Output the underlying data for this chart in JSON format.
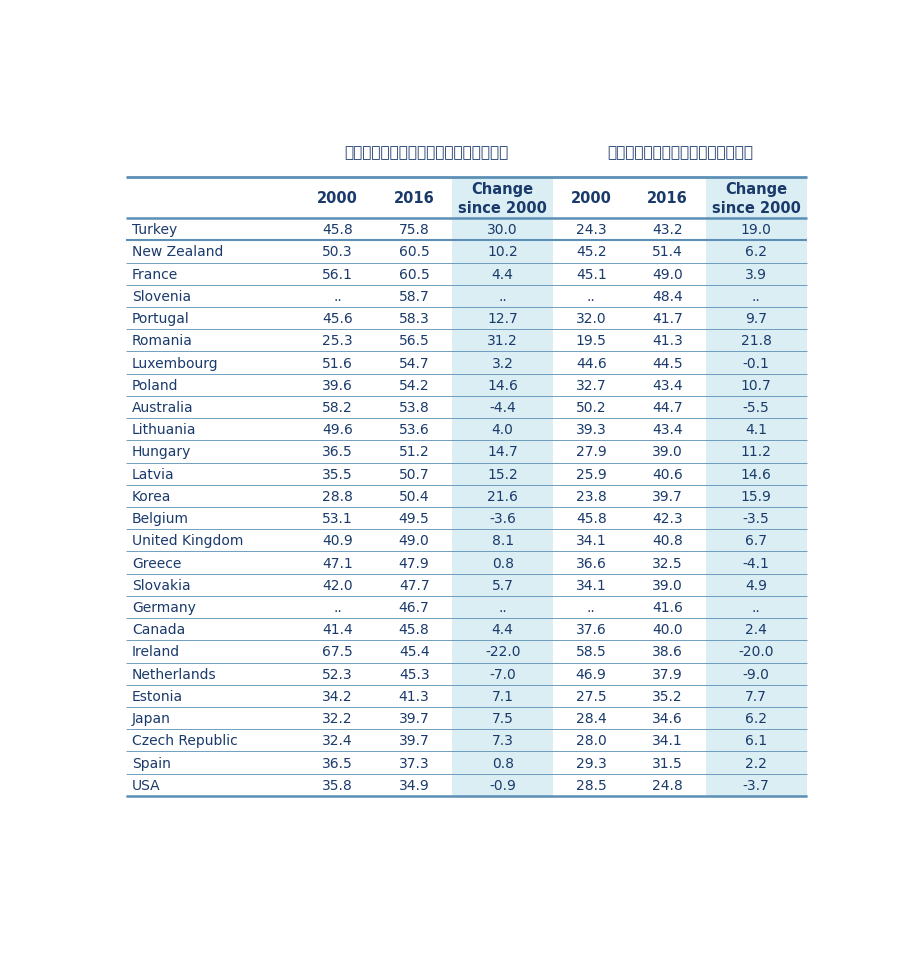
{
  "title1": "最低工資佔全職工作者薪資中位數百分比",
  "title2": "最低工資佔全職工人平均薪資百分比",
  "rows": [
    [
      "Turkey",
      "45.8",
      "75.8",
      "30.0",
      "24.3",
      "43.2",
      "19.0"
    ],
    [
      "New Zealand",
      "50.3",
      "60.5",
      "10.2",
      "45.2",
      "51.4",
      "6.2"
    ],
    [
      "France",
      "56.1",
      "60.5",
      "4.4",
      "45.1",
      "49.0",
      "3.9"
    ],
    [
      "Slovenia",
      "..",
      "58.7",
      "..",
      "..",
      "48.4",
      ".."
    ],
    [
      "Portugal",
      "45.6",
      "58.3",
      "12.7",
      "32.0",
      "41.7",
      "9.7"
    ],
    [
      "Romania",
      "25.3",
      "56.5",
      "31.2",
      "19.5",
      "41.3",
      "21.8"
    ],
    [
      "Luxembourg",
      "51.6",
      "54.7",
      "3.2",
      "44.6",
      "44.5",
      "-0.1"
    ],
    [
      "Poland",
      "39.6",
      "54.2",
      "14.6",
      "32.7",
      "43.4",
      "10.7"
    ],
    [
      "Australia",
      "58.2",
      "53.8",
      "-4.4",
      "50.2",
      "44.7",
      "-5.5"
    ],
    [
      "Lithuania",
      "49.6",
      "53.6",
      "4.0",
      "39.3",
      "43.4",
      "4.1"
    ],
    [
      "Hungary",
      "36.5",
      "51.2",
      "14.7",
      "27.9",
      "39.0",
      "11.2"
    ],
    [
      "Latvia",
      "35.5",
      "50.7",
      "15.2",
      "25.9",
      "40.6",
      "14.6"
    ],
    [
      "Korea",
      "28.8",
      "50.4",
      "21.6",
      "23.8",
      "39.7",
      "15.9"
    ],
    [
      "Belgium",
      "53.1",
      "49.5",
      "-3.6",
      "45.8",
      "42.3",
      "-3.5"
    ],
    [
      "United Kingdom",
      "40.9",
      "49.0",
      "8.1",
      "34.1",
      "40.8",
      "6.7"
    ],
    [
      "Greece",
      "47.1",
      "47.9",
      "0.8",
      "36.6",
      "32.5",
      "-4.1"
    ],
    [
      "Slovakia",
      "42.0",
      "47.7",
      "5.7",
      "34.1",
      "39.0",
      "4.9"
    ],
    [
      "Germany",
      "..",
      "46.7",
      "..",
      "..",
      "41.6",
      ".."
    ],
    [
      "Canada",
      "41.4",
      "45.8",
      "4.4",
      "37.6",
      "40.0",
      "2.4"
    ],
    [
      "Ireland",
      "67.5",
      "45.4",
      "-22.0",
      "58.5",
      "38.6",
      "-20.0"
    ],
    [
      "Netherlands",
      "52.3",
      "45.3",
      "-7.0",
      "46.9",
      "37.9",
      "-9.0"
    ],
    [
      "Estonia",
      "34.2",
      "41.3",
      "7.1",
      "27.5",
      "35.2",
      "7.7"
    ],
    [
      "Japan",
      "32.2",
      "39.7",
      "7.5",
      "28.4",
      "34.6",
      "6.2"
    ],
    [
      "Czech Republic",
      "32.4",
      "39.7",
      "7.3",
      "28.0",
      "34.1",
      "6.1"
    ],
    [
      "Spain",
      "36.5",
      "37.3",
      "0.8",
      "29.3",
      "31.5",
      "2.2"
    ],
    [
      "USA",
      "35.8",
      "34.9",
      "-0.9",
      "28.5",
      "24.8",
      "-3.7"
    ]
  ],
  "highlight_bg": "#daeef3",
  "text_color": "#1a3a6b",
  "border_color": "#5b8fb5",
  "bg_color": "#ffffff",
  "title_color": "#1a3a6b",
  "figsize": [
    9.0,
    9.62
  ],
  "dpi": 100
}
